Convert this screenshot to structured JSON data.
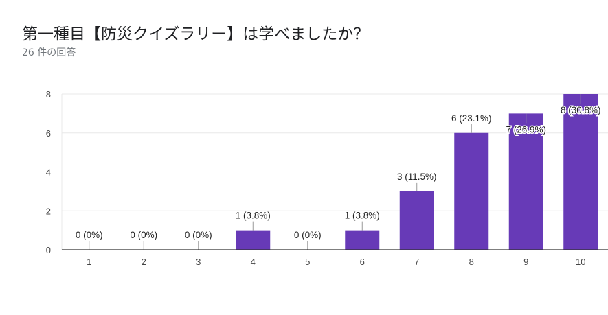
{
  "header": {
    "title": "第一種目【防災クイズラリー】は学べましたか？",
    "subtitle": "26 件の回答"
  },
  "colors": {
    "bar": "#673ab7",
    "grid": "#e8e8e8",
    "axis": "#333333"
  },
  "chart_data": {
    "type": "bar",
    "title": "第一種目【防災クイズラリー】は学べましたか？",
    "subtitle": "26 件の回答",
    "categories": [
      "1",
      "2",
      "3",
      "4",
      "5",
      "6",
      "7",
      "8",
      "9",
      "10"
    ],
    "values": [
      0,
      0,
      0,
      1,
      0,
      1,
      3,
      6,
      7,
      8
    ],
    "data_labels": [
      "0 (0%)",
      "0 (0%)",
      "0 (0%)",
      "1 (3.8%)",
      "0 (0%)",
      "1 (3.8%)",
      "3 (11.5%)",
      "6 (23.1%)",
      "7 (26.9%)",
      "8 (30.8%)"
    ],
    "yticks": [
      0,
      2,
      4,
      6,
      8
    ],
    "ylim": [
      0,
      8
    ],
    "grid": true,
    "xlabel": "",
    "ylabel": ""
  }
}
